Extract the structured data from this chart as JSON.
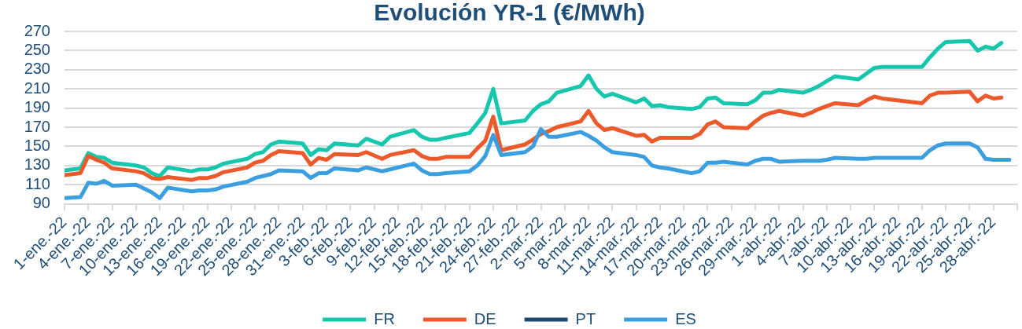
{
  "chart_data": {
    "type": "line",
    "title": "Evolución YR-1 (€/MWh)",
    "x": [
      "--01-01",
      "--01-03",
      "--01-04",
      "--01-05",
      "--01-06",
      "--01-07",
      "--01-10",
      "--01-11",
      "--01-12",
      "--01-13",
      "--01-14",
      "--01-17",
      "--01-18",
      "--01-19",
      "--01-20",
      "--01-21",
      "--01-24",
      "--01-25",
      "--01-26",
      "--01-27",
      "--01-28",
      "--01-31",
      "--02-01",
      "--02-02",
      "--02-03",
      "--02-04",
      "--02-07",
      "--02-08",
      "--02-10",
      "--02-11",
      "--02-14",
      "--02-15",
      "--02-16",
      "--02-17",
      "--02-18",
      "--02-21",
      "--02-22",
      "--02-23",
      "--02-24",
      "--02-25",
      "--02-28",
      "--03-01",
      "--03-02",
      "--03-03",
      "--03-04",
      "--03-07",
      "--03-08",
      "--03-09",
      "--03-10",
      "--03-11",
      "--03-14",
      "--03-15",
      "--03-16",
      "--03-17",
      "--03-18",
      "--03-21",
      "--03-22",
      "--03-23",
      "--03-24",
      "--03-25",
      "--03-28",
      "--03-29",
      "--03-30",
      "--03-31",
      "--04-01",
      "--04-04",
      "--04-05",
      "--04-06",
      "--04-07",
      "--04-08",
      "--04-11",
      "--04-12",
      "--04-13",
      "--04-14",
      "--04-19",
      "--04-20",
      "--04-21",
      "--04-22",
      "--04-25",
      "--04-26",
      "--04-27",
      "--04-28",
      "--04-29",
      "--04-30"
    ],
    "series": [
      {
        "name": "FR",
        "color": "#16c7ad",
        "values": [
          125,
          127,
          143,
          139,
          138,
          133,
          130,
          128,
          122,
          119,
          128,
          124,
          126,
          126,
          128,
          132,
          137,
          142,
          144,
          152,
          155,
          153,
          141,
          147,
          146,
          153,
          151,
          158,
          152,
          160,
          167,
          160,
          157,
          157,
          159,
          164,
          174,
          185,
          210,
          174,
          177,
          187,
          194,
          197,
          206,
          213,
          224,
          210,
          202,
          205,
          196,
          200,
          192,
          193,
          191,
          189,
          191,
          200,
          201,
          195,
          194,
          198,
          206,
          206,
          209,
          206,
          209,
          213,
          218,
          223,
          220,
          226,
          232,
          233,
          233,
          243,
          252,
          259,
          260,
          250,
          254,
          252,
          258,
          null
        ]
      },
      {
        "name": "DE",
        "color": "#ec5a2b",
        "values": [
          120,
          122,
          140,
          136,
          133,
          127,
          124,
          122,
          117,
          116,
          118,
          115,
          117,
          117,
          119,
          123,
          128,
          133,
          135,
          141,
          145,
          143,
          131,
          138,
          136,
          142,
          141,
          144,
          137,
          141,
          146,
          140,
          137,
          137,
          139,
          139,
          148,
          156,
          181,
          146,
          152,
          157,
          163,
          166,
          170,
          176,
          187,
          174,
          167,
          169,
          161,
          162,
          155,
          159,
          159,
          159,
          163,
          173,
          176,
          170,
          169,
          176,
          182,
          185,
          187,
          182,
          185,
          189,
          192,
          195,
          193,
          198,
          202,
          200,
          195,
          203,
          206,
          206,
          207,
          197,
          203,
          200,
          201,
          null
        ]
      },
      {
        "name": "PT",
        "color": "#1d4a72",
        "values": [
          null,
          null,
          null,
          null,
          null,
          null,
          null,
          null,
          null,
          null,
          null,
          null,
          null,
          null,
          null,
          null,
          null,
          null,
          null,
          null,
          null,
          null,
          null,
          null,
          null,
          null,
          null,
          null,
          null,
          null,
          null,
          null,
          null,
          null,
          null,
          null,
          null,
          null,
          null,
          null,
          null,
          null,
          null,
          null,
          null,
          null,
          null,
          null,
          null,
          null,
          null,
          null,
          null,
          null,
          null,
          null,
          null,
          null,
          null,
          null,
          null,
          null,
          null,
          null,
          null,
          null,
          null,
          null,
          null,
          null,
          null,
          null,
          null,
          null,
          null,
          null,
          null,
          null,
          null,
          null,
          null,
          null,
          null,
          null
        ]
      },
      {
        "name": "ES",
        "color": "#3b9fdf",
        "values": [
          96,
          97,
          112,
          111,
          114,
          109,
          110,
          106,
          102,
          96,
          107,
          103,
          104,
          104,
          105,
          108,
          113,
          117,
          119,
          121,
          125,
          124,
          117,
          122,
          122,
          127,
          125,
          128,
          124,
          126,
          132,
          125,
          121,
          121,
          122,
          124,
          130,
          140,
          162,
          141,
          144,
          150,
          168,
          160,
          160,
          165,
          161,
          156,
          149,
          144,
          141,
          139,
          130,
          128,
          127,
          122,
          124,
          133,
          133,
          134,
          131,
          135,
          137,
          137,
          134,
          135,
          135,
          135,
          136,
          138,
          137,
          137,
          138,
          138,
          138,
          146,
          151,
          153,
          153,
          149,
          137,
          136,
          136,
          136
        ]
      }
    ],
    "xlim": [
      "--01-01",
      "--05-01"
    ],
    "xticks": [
      {
        "value": "--01-01",
        "label": "1-ene.-22"
      },
      {
        "value": "--01-04",
        "label": "4-ene.-22"
      },
      {
        "value": "--01-07",
        "label": "7-ene.-22"
      },
      {
        "value": "--01-10",
        "label": "10-ene.-22"
      },
      {
        "value": "--01-13",
        "label": "13-ene.-22"
      },
      {
        "value": "--01-16",
        "label": "16-ene.-22"
      },
      {
        "value": "--01-19",
        "label": "19-ene.-22"
      },
      {
        "value": "--01-22",
        "label": "22-ene.-22"
      },
      {
        "value": "--01-25",
        "label": "25-ene.-22"
      },
      {
        "value": "--01-28",
        "label": "28-ene.-22"
      },
      {
        "value": "--01-31",
        "label": "31-ene.-22"
      },
      {
        "value": "--02-03",
        "label": "3-feb.-22"
      },
      {
        "value": "--02-06",
        "label": "6-feb.-22"
      },
      {
        "value": "--02-09",
        "label": "9-feb.-22"
      },
      {
        "value": "--02-12",
        "label": "12-feb.-22"
      },
      {
        "value": "--02-15",
        "label": "15-feb.-22"
      },
      {
        "value": "--02-18",
        "label": "18-feb.-22"
      },
      {
        "value": "--02-21",
        "label": "21-feb.-22"
      },
      {
        "value": "--02-24",
        "label": "24-feb.-22"
      },
      {
        "value": "--02-27",
        "label": "27-feb.-22"
      },
      {
        "value": "--03-02",
        "label": "2-mar.-22"
      },
      {
        "value": "--03-05",
        "label": "5-mar.-22"
      },
      {
        "value": "--03-08",
        "label": "8-mar.-22"
      },
      {
        "value": "--03-11",
        "label": "11-mar.-22"
      },
      {
        "value": "--03-14",
        "label": "14-mar.-22"
      },
      {
        "value": "--03-17",
        "label": "17-mar.-22"
      },
      {
        "value": "--03-20",
        "label": "20-mar.-22"
      },
      {
        "value": "--03-23",
        "label": "23-mar.-22"
      },
      {
        "value": "--03-26",
        "label": "26-mar.-22"
      },
      {
        "value": "--03-29",
        "label": "29-mar.-22"
      },
      {
        "value": "--04-01",
        "label": "1-abr.-22"
      },
      {
        "value": "--04-04",
        "label": "4-abr.-22"
      },
      {
        "value": "--04-07",
        "label": "7-abr.-22"
      },
      {
        "value": "--04-10",
        "label": "10-abr.-22"
      },
      {
        "value": "--04-13",
        "label": "13-abr.-22"
      },
      {
        "value": "--04-16",
        "label": "16-abr.-22"
      },
      {
        "value": "--04-19",
        "label": "19-abr.-22"
      },
      {
        "value": "--04-22",
        "label": "22-abr.-22"
      },
      {
        "value": "--04-25",
        "label": "25-abr.-22"
      },
      {
        "value": "--04-28",
        "label": "28-abr.-22"
      },
      {
        "value": "--05-01",
        "label": null
      }
    ],
    "ylim": [
      90,
      270
    ],
    "yticks": [
      90,
      110,
      130,
      150,
      170,
      190,
      210,
      230,
      250,
      270
    ],
    "grid": "y",
    "legend": "bottom"
  }
}
